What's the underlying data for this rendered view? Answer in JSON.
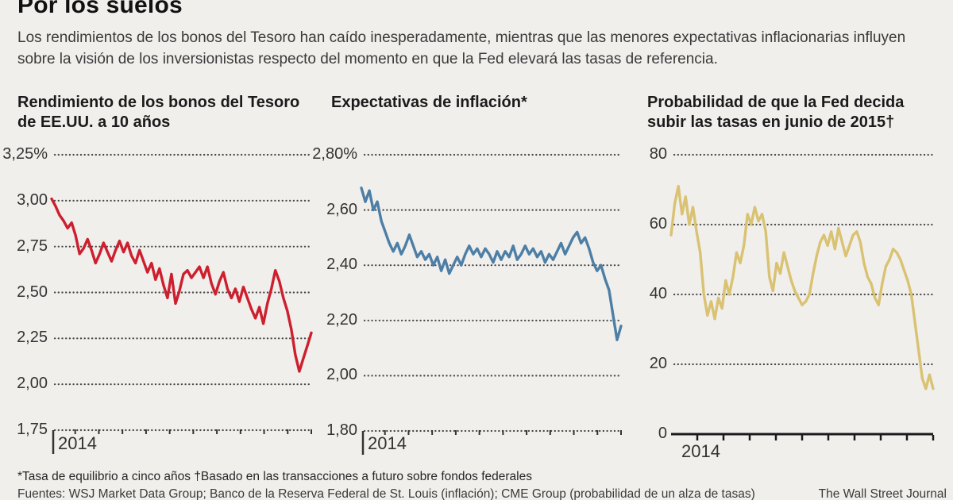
{
  "header": {
    "title": "Por los suelos",
    "deck": "Los rendimientos de los bonos del Tesoro han caído inesperadamente, mientras que las menores expectativas inflacionarias influyen sobre la visión de los inversionistas respecto del momento en que la Fed elevará las tasas de referencia."
  },
  "colors": {
    "background": "#f0efec",
    "red": "#cd1f2e",
    "blue": "#4d7fa6",
    "gold": "#d9c272",
    "grid_dots": "#474747",
    "axis": "#1a1a1a",
    "tick": "#333333"
  },
  "chart_data": [
    {
      "type": "line",
      "title": "Rendimiento de los bonos del Tesoro de EE.UU. a 10 años",
      "color_key": "red",
      "ylim": [
        1.75,
        3.25
      ],
      "yticks": [
        {
          "label": "3,25%",
          "value": 3.25
        },
        {
          "label": "3,00",
          "value": 3.0
        },
        {
          "label": "2,75",
          "value": 2.75
        },
        {
          "label": "2,50",
          "value": 2.5
        },
        {
          "label": "2,25",
          "value": 2.25
        },
        {
          "label": "2,00",
          "value": 2.0
        },
        {
          "label": "1,75",
          "value": 1.75
        }
      ],
      "baseline": "dotted",
      "grid": "dotted",
      "x_start_label": "2014",
      "xlabel": "",
      "ylabel": "",
      "values": [
        3.01,
        2.97,
        2.92,
        2.89,
        2.85,
        2.88,
        2.81,
        2.71,
        2.74,
        2.79,
        2.73,
        2.66,
        2.71,
        2.77,
        2.72,
        2.67,
        2.73,
        2.78,
        2.72,
        2.77,
        2.7,
        2.66,
        2.73,
        2.67,
        2.61,
        2.66,
        2.57,
        2.63,
        2.54,
        2.47,
        2.6,
        2.44,
        2.51,
        2.6,
        2.62,
        2.58,
        2.61,
        2.64,
        2.58,
        2.64,
        2.55,
        2.49,
        2.56,
        2.61,
        2.52,
        2.47,
        2.52,
        2.45,
        2.53,
        2.47,
        2.41,
        2.36,
        2.42,
        2.33,
        2.44,
        2.52,
        2.62,
        2.56,
        2.47,
        2.4,
        2.3,
        2.16,
        2.07,
        2.14,
        2.21,
        2.28
      ]
    },
    {
      "type": "line",
      "title": "Expectativas de inflación*",
      "color_key": "blue",
      "ylim": [
        1.8,
        2.8
      ],
      "yticks": [
        {
          "label": "2,80%",
          "value": 2.8
        },
        {
          "label": "2,60",
          "value": 2.6
        },
        {
          "label": "2,40",
          "value": 2.4
        },
        {
          "label": "2,20",
          "value": 2.2
        },
        {
          "label": "2,00",
          "value": 2.0
        },
        {
          "label": "1,80",
          "value": 1.8
        }
      ],
      "baseline": "dotted",
      "grid": "dotted",
      "x_start_label": "2014",
      "xlabel": "",
      "ylabel": "",
      "values": [
        2.68,
        2.63,
        2.67,
        2.6,
        2.63,
        2.56,
        2.52,
        2.48,
        2.45,
        2.48,
        2.44,
        2.47,
        2.51,
        2.47,
        2.43,
        2.45,
        2.42,
        2.44,
        2.4,
        2.43,
        2.38,
        2.42,
        2.37,
        2.4,
        2.43,
        2.4,
        2.44,
        2.47,
        2.44,
        2.46,
        2.43,
        2.46,
        2.44,
        2.41,
        2.45,
        2.42,
        2.45,
        2.43,
        2.47,
        2.42,
        2.44,
        2.47,
        2.44,
        2.46,
        2.43,
        2.45,
        2.41,
        2.44,
        2.42,
        2.45,
        2.48,
        2.44,
        2.47,
        2.5,
        2.52,
        2.48,
        2.5,
        2.46,
        2.41,
        2.38,
        2.4,
        2.35,
        2.31,
        2.22,
        2.13,
        2.18
      ]
    },
    {
      "type": "line",
      "title": "Probabilidad de que la Fed decida subir las tasas en junio de 2015†",
      "color_key": "gold",
      "ylim": [
        0,
        80
      ],
      "yticks": [
        {
          "label": "80",
          "value": 80
        },
        {
          "label": "60",
          "value": 60
        },
        {
          "label": "40",
          "value": 40
        },
        {
          "label": "20",
          "value": 20
        },
        {
          "label": "0",
          "value": 0
        }
      ],
      "baseline": "solid",
      "grid": "dotted",
      "x_start_label": "2014",
      "xlabel": "",
      "ylabel": "",
      "values": [
        57,
        66,
        71,
        63,
        68,
        60,
        65,
        58,
        52,
        40,
        34,
        38,
        33,
        39,
        36,
        44,
        40,
        45,
        52,
        49,
        54,
        63,
        60,
        65,
        61,
        63,
        58,
        45,
        41,
        49,
        46,
        52,
        48,
        44,
        41,
        39,
        37,
        38,
        40,
        46,
        51,
        55,
        57,
        54,
        58,
        53,
        59,
        55,
        51,
        54,
        57,
        58,
        55,
        49,
        45,
        43,
        39,
        37,
        43,
        48,
        50,
        53,
        52,
        50,
        47,
        44,
        40,
        32,
        24,
        16,
        13,
        17,
        13
      ]
    }
  ],
  "footer": {
    "footnote": "*Tasa de equilibrio a cinco años  †Basado en las transacciones a futuro sobre fondos federales",
    "sources": "Fuentes: WSJ Market Data Group; Banco de la Reserva Federal de St. Louis (inflación); CME Group (probabilidad de un alza de tasas)",
    "credit": "The Wall Street Journal"
  }
}
